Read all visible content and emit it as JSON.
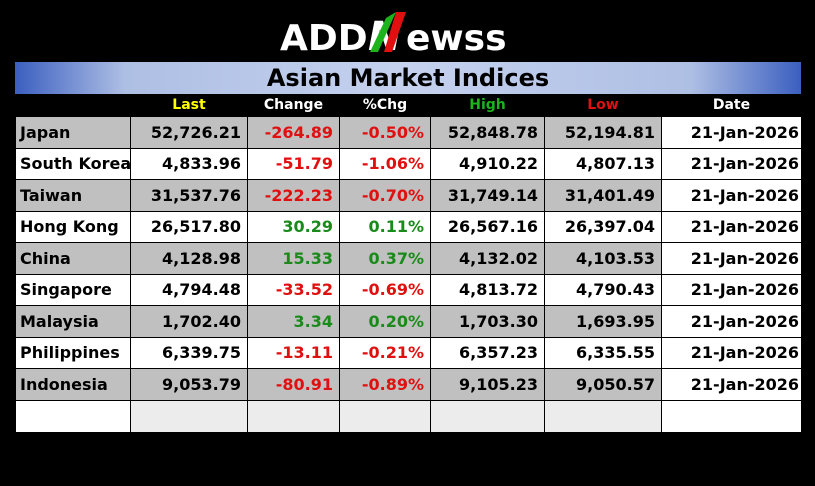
{
  "logo": {
    "part1": "ADD",
    "part2": "N",
    "part3": "ewss"
  },
  "title": "Asian Market Indices",
  "columns": {
    "last": "Last",
    "change": "Change",
    "pct": "%Chg",
    "high": "High",
    "low": "Low",
    "date": "Date"
  },
  "colors": {
    "last_header": "#ffff00",
    "high_header": "#1db31d",
    "low_header": "#e01010",
    "negative": "#e01010",
    "positive": "#1a8a1a",
    "title_bar": "#c5d1ee"
  },
  "rows": [
    {
      "name": "Japan",
      "last": "52,726.21",
      "change": "-264.89",
      "pct": "-0.50%",
      "high": "52,848.78",
      "low": "52,194.81",
      "date": "21-Jan-2026",
      "direction": "down"
    },
    {
      "name": "South Korea",
      "last": "4,833.96",
      "change": "-51.79",
      "pct": "-1.06%",
      "high": "4,910.22",
      "low": "4,807.13",
      "date": "21-Jan-2026",
      "direction": "down"
    },
    {
      "name": "Taiwan",
      "last": "31,537.76",
      "change": "-222.23",
      "pct": "-0.70%",
      "high": "31,749.14",
      "low": "31,401.49",
      "date": "21-Jan-2026",
      "direction": "down"
    },
    {
      "name": "Hong Kong",
      "last": "26,517.80",
      "change": "30.29",
      "pct": "0.11%",
      "high": "26,567.16",
      "low": "26,397.04",
      "date": "21-Jan-2026",
      "direction": "up"
    },
    {
      "name": "China",
      "last": "4,128.98",
      "change": "15.33",
      "pct": "0.37%",
      "high": "4,132.02",
      "low": "4,103.53",
      "date": "21-Jan-2026",
      "direction": "up"
    },
    {
      "name": "Singapore",
      "last": "4,794.48",
      "change": "-33.52",
      "pct": "-0.69%",
      "high": "4,813.72",
      "low": "4,790.43",
      "date": "21-Jan-2026",
      "direction": "down"
    },
    {
      "name": "Malaysia",
      "last": "1,702.40",
      "change": "3.34",
      "pct": "0.20%",
      "high": "1,703.30",
      "low": "1,693.95",
      "date": "21-Jan-2026",
      "direction": "up"
    },
    {
      "name": "Philippines",
      "last": "6,339.75",
      "change": "-13.11",
      "pct": "-0.21%",
      "high": "6,357.23",
      "low": "6,335.55",
      "date": "21-Jan-2026",
      "direction": "down"
    },
    {
      "name": "Indonesia",
      "last": "9,053.79",
      "change": "-80.91",
      "pct": "-0.89%",
      "high": "9,105.23",
      "low": "9,050.57",
      "date": "21-Jan-2026",
      "direction": "down"
    }
  ]
}
